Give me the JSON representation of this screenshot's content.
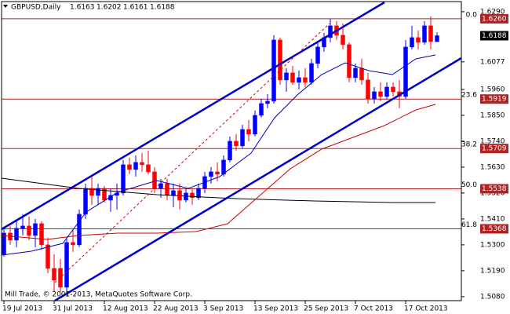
{
  "chart_data": {
    "type": "candlestick",
    "title": "GBPUSD,Daily",
    "footer": "Mill Trade, © 2001-2013, MetaQuotes Software Corp.",
    "categories": [
      "19 Jul 2013",
      null,
      null,
      null,
      null,
      null,
      null,
      null,
      "31 Jul 2013",
      null,
      null,
      null,
      null,
      null,
      null,
      null,
      "12 Aug 2013",
      null,
      null,
      null,
      null,
      null,
      null,
      null,
      "22 Aug 2013",
      null,
      null,
      null,
      null,
      null,
      null,
      null,
      "3 Sep 2013",
      null,
      null,
      null,
      null,
      null,
      null,
      null,
      "13 Sep 2013",
      null,
      null,
      null,
      null,
      null,
      null,
      null,
      "25 Sep 2013",
      null,
      null,
      null,
      null,
      null,
      null,
      null,
      "7 Oct 2013",
      null,
      null,
      null,
      null,
      null,
      null,
      null,
      "17 Oct 2013",
      null,
      null,
      null,
      null,
      null
    ],
    "open": [
      1.526,
      1.535,
      1.532,
      1.537,
      1.538,
      1.534,
      1.539,
      1.53,
      1.52,
      1.52,
      1.512,
      1.531,
      1.53,
      1.543,
      1.554,
      1.551,
      1.554,
      1.549,
      1.551,
      1.552,
      1.564,
      1.562,
      1.565,
      1.564,
      1.561,
      1.554,
      1.556,
      1.551,
      1.553,
      1.549,
      1.552,
      1.55,
      1.554,
      1.559,
      1.561,
      1.56,
      1.566,
      1.574,
      1.572,
      1.579,
      1.577,
      1.585,
      1.59,
      1.591,
      1.617,
      1.6,
      1.603,
      1.599,
      1.601,
      1.599,
      1.607,
      1.614,
      1.618,
      1.623,
      1.619,
      1.615,
      1.601,
      1.605,
      1.6,
      1.592,
      1.595,
      1.593,
      1.597,
      1.595,
      1.593,
      1.614,
      1.618,
      1.616,
      1.623,
      1.6163
    ],
    "high": [
      1.537,
      1.538,
      1.54,
      1.543,
      1.542,
      1.541,
      1.54,
      1.533,
      1.526,
      1.524,
      1.533,
      1.537,
      1.545,
      1.556,
      1.559,
      1.556,
      1.555,
      1.554,
      1.556,
      1.566,
      1.567,
      1.568,
      1.569,
      1.57,
      1.563,
      1.558,
      1.558,
      1.556,
      1.556,
      1.554,
      1.554,
      1.556,
      1.561,
      1.563,
      1.565,
      1.568,
      1.576,
      1.577,
      1.581,
      1.583,
      1.587,
      1.592,
      1.594,
      1.619,
      1.618,
      1.605,
      1.606,
      1.604,
      1.605,
      1.609,
      1.616,
      1.62,
      1.626,
      1.625,
      1.624,
      1.616,
      1.607,
      1.609,
      1.603,
      1.597,
      1.599,
      1.599,
      1.599,
      1.6,
      1.617,
      1.623,
      1.621,
      1.625,
      1.627,
      1.6202
    ],
    "low": [
      1.525,
      1.53,
      1.529,
      1.534,
      1.532,
      1.529,
      1.528,
      1.518,
      1.51,
      1.51,
      1.508,
      1.527,
      1.529,
      1.541,
      1.547,
      1.547,
      1.548,
      1.544,
      1.545,
      1.551,
      1.56,
      1.559,
      1.561,
      1.56,
      1.552,
      1.55,
      1.549,
      1.546,
      1.545,
      1.548,
      1.547,
      1.549,
      1.552,
      1.556,
      1.557,
      1.559,
      1.565,
      1.57,
      1.571,
      1.574,
      1.576,
      1.584,
      1.588,
      1.59,
      1.598,
      1.595,
      1.598,
      1.596,
      1.597,
      1.598,
      1.605,
      1.612,
      1.616,
      1.617,
      1.613,
      1.599,
      1.599,
      1.598,
      1.59,
      1.59,
      1.591,
      1.592,
      1.593,
      1.588,
      1.592,
      1.613,
      1.613,
      1.615,
      1.613,
      1.6161
    ],
    "close": [
      1.535,
      1.532,
      1.537,
      1.538,
      1.534,
      1.539,
      1.53,
      1.52,
      1.515,
      1.512,
      1.531,
      1.53,
      1.543,
      1.554,
      1.551,
      1.554,
      1.549,
      1.551,
      1.552,
      1.564,
      1.562,
      1.565,
      1.564,
      1.561,
      1.554,
      1.556,
      1.551,
      1.553,
      1.549,
      1.552,
      1.55,
      1.554,
      1.559,
      1.561,
      1.56,
      1.566,
      1.574,
      1.572,
      1.579,
      1.577,
      1.585,
      1.59,
      1.591,
      1.617,
      1.6,
      1.603,
      1.599,
      1.601,
      1.599,
      1.607,
      1.614,
      1.618,
      1.623,
      1.619,
      1.615,
      1.601,
      1.605,
      1.6,
      1.592,
      1.595,
      1.593,
      1.597,
      1.595,
      1.593,
      1.614,
      1.618,
      1.616,
      1.623,
      1.6163,
      1.6188
    ],
    "up_color": "#0000ff",
    "down_color": "#ff0000",
    "ylim": [
      1.5063,
      1.6333
    ],
    "yticks": [
      {
        "value": 1.629,
        "label": "1.6290"
      },
      1.6077,
      {
        "value": 1.596,
        "label": "1.5960"
      },
      {
        "value": 1.585,
        "label": "1.5850"
      },
      {
        "value": 1.574,
        "label": "1.5740"
      },
      {
        "value": 1.563,
        "label": "1.5630"
      },
      {
        "value": 1.552,
        "label": "1.5520"
      },
      {
        "value": 1.541,
        "label": "1.5410"
      },
      {
        "value": 1.53,
        "label": "1.5300"
      },
      {
        "value": 1.519,
        "label": "1.5190"
      },
      {
        "value": 1.508,
        "label": "1.5080"
      }
    ],
    "fib_color": "#b22222",
    "fib_levels": [
      {
        "level": "0.0",
        "price": {
          "value": 1.626,
          "label": "1.6260"
        }
      },
      {
        "level": "23.6",
        "price": 1.5919
      },
      {
        "level": "38.2",
        "price": 1.5709
      },
      {
        "level": "50.0",
        "price": 1.5538
      },
      {
        "level": "61.8",
        "price": 1.5368
      }
    ]
  }
}
